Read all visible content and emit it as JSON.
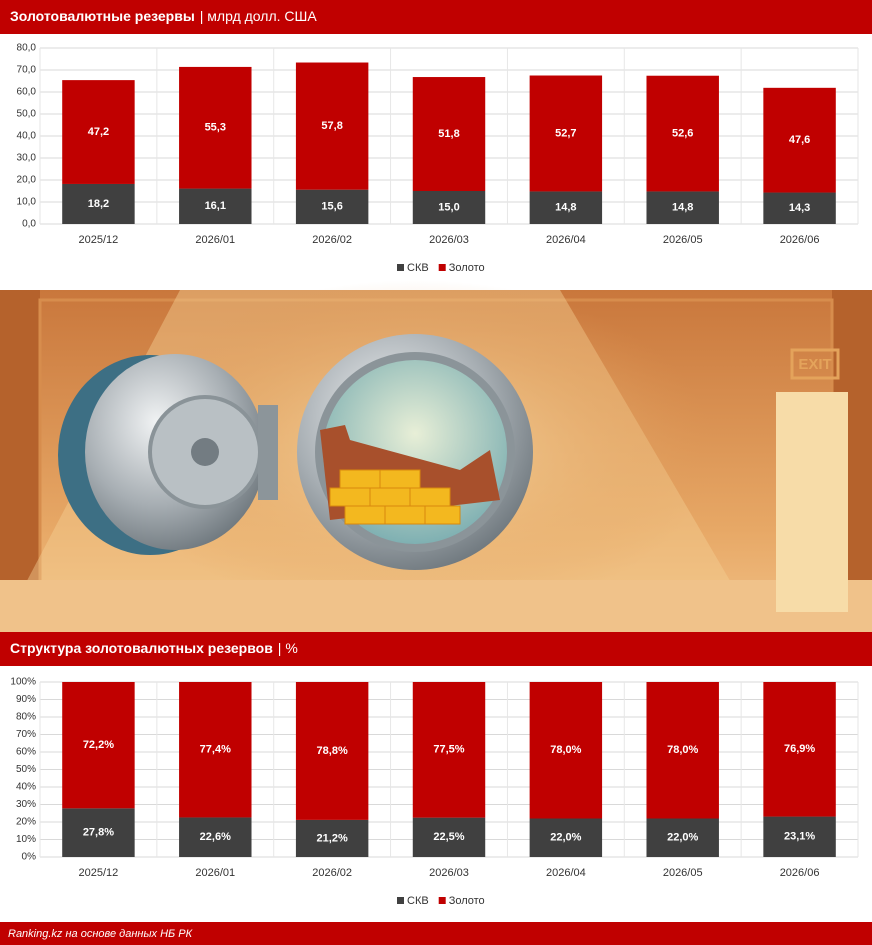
{
  "chart_data": [
    {
      "type": "stacked_bar",
      "title": "Золотовалютные резервы",
      "subtitle": "| млрд долл. США",
      "categories": [
        "2025/12",
        "2026/01",
        "2026/02",
        "2026/03",
        "2026/04",
        "2026/05",
        "2026/06"
      ],
      "series": [
        {
          "name": "СКВ",
          "color": "#404040",
          "values": [
            18.2,
            16.1,
            15.6,
            15.0,
            14.8,
            14.8,
            14.3
          ],
          "value_labels": [
            "18,2",
            "16,1",
            "15,6",
            "15,0",
            "14,8",
            "14,8",
            "14,3"
          ]
        },
        {
          "name": "Золото",
          "color": "#c00000",
          "values": [
            47.2,
            55.3,
            57.8,
            51.8,
            52.7,
            52.6,
            47.6
          ],
          "value_labels": [
            "47,2",
            "55,3",
            "57,8",
            "51,8",
            "52,7",
            "52,6",
            "47,6"
          ]
        }
      ],
      "ylim": [
        0,
        80
      ],
      "yticks": [
        {
          "value": 0,
          "label": "0,0"
        },
        {
          "value": 10,
          "label": "10,0"
        },
        {
          "value": 20,
          "label": "20,0"
        },
        {
          "value": 30,
          "label": "30,0"
        },
        {
          "value": 40,
          "label": "40,0"
        },
        {
          "value": 50,
          "label": "50,0"
        },
        {
          "value": 60,
          "label": "60,0"
        },
        {
          "value": 70,
          "label": "70,0"
        },
        {
          "value": 80,
          "label": "80,0"
        }
      ],
      "grid": true,
      "legend": "bottom"
    },
    {
      "type": "stacked_bar",
      "title": "Структура золотовалютных резервов",
      "subtitle": "| %",
      "categories": [
        "2025/12",
        "2026/01",
        "2026/02",
        "2026/03",
        "2026/04",
        "2026/05",
        "2026/06"
      ],
      "series": [
        {
          "name": "СКВ",
          "color": "#404040",
          "values": [
            27.8,
            22.6,
            21.2,
            22.5,
            22.0,
            22.0,
            23.1
          ],
          "value_labels": [
            "27,8%",
            "22,6%",
            "21,2%",
            "22,5%",
            "22,0%",
            "22,0%",
            "23,1%"
          ]
        },
        {
          "name": "Золото",
          "color": "#c00000",
          "values": [
            72.2,
            77.4,
            78.8,
            77.5,
            78.0,
            78.0,
            76.9
          ],
          "value_labels": [
            "72,2%",
            "77,4%",
            "78,8%",
            "77,5%",
            "78,0%",
            "78,0%",
            "76,9%"
          ]
        }
      ],
      "ylim": [
        0,
        100
      ],
      "yticks": [
        {
          "value": 0,
          "label": "0%"
        },
        {
          "value": 10,
          "label": "10%"
        },
        {
          "value": 20,
          "label": "20%"
        },
        {
          "value": 30,
          "label": "30%"
        },
        {
          "value": 40,
          "label": "40%"
        },
        {
          "value": 50,
          "label": "50%"
        },
        {
          "value": 60,
          "label": "60%"
        },
        {
          "value": 70,
          "label": "70%"
        },
        {
          "value": 80,
          "label": "80%"
        },
        {
          "value": 90,
          "label": "90%"
        },
        {
          "value": 100,
          "label": "100%"
        }
      ],
      "grid": true,
      "legend": "bottom"
    }
  ],
  "footer": {
    "text": "Ranking.kz на основе данных НБ РК"
  },
  "illustration": {
    "sign": "EXIT"
  }
}
